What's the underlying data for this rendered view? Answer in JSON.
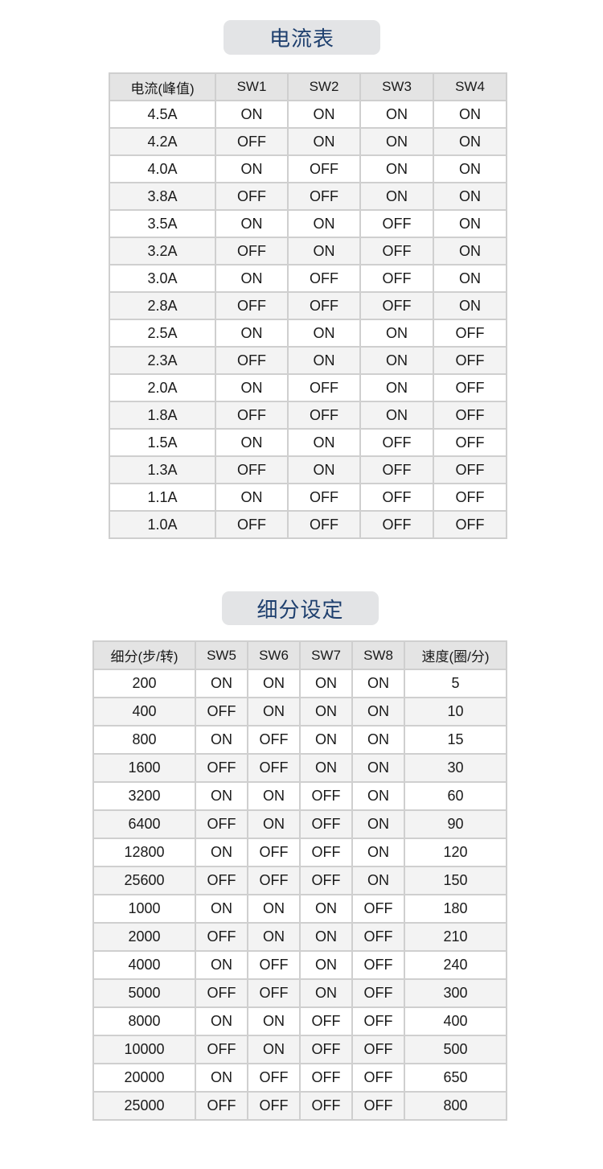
{
  "current_table": {
    "title": "电流表",
    "headers": [
      "电流(峰值)",
      "SW1",
      "SW2",
      "SW3",
      "SW4"
    ],
    "rows": [
      [
        "4.5A",
        "ON",
        "ON",
        "ON",
        "ON"
      ],
      [
        "4.2A",
        "OFF",
        "ON",
        "ON",
        "ON"
      ],
      [
        "4.0A",
        "ON",
        "OFF",
        "ON",
        "ON"
      ],
      [
        "3.8A",
        "OFF",
        "OFF",
        "ON",
        "ON"
      ],
      [
        "3.5A",
        "ON",
        "ON",
        "OFF",
        "ON"
      ],
      [
        "3.2A",
        "OFF",
        "ON",
        "OFF",
        "ON"
      ],
      [
        "3.0A",
        "ON",
        "OFF",
        "OFF",
        "ON"
      ],
      [
        "2.8A",
        "OFF",
        "OFF",
        "OFF",
        "ON"
      ],
      [
        "2.5A",
        "ON",
        "ON",
        "ON",
        "OFF"
      ],
      [
        "2.3A",
        "OFF",
        "ON",
        "ON",
        "OFF"
      ],
      [
        "2.0A",
        "ON",
        "OFF",
        "ON",
        "OFF"
      ],
      [
        "1.8A",
        "OFF",
        "OFF",
        "ON",
        "OFF"
      ],
      [
        "1.5A",
        "ON",
        "ON",
        "OFF",
        "OFF"
      ],
      [
        "1.3A",
        "OFF",
        "ON",
        "OFF",
        "OFF"
      ],
      [
        "1.1A",
        "ON",
        "OFF",
        "OFF",
        "OFF"
      ],
      [
        "1.0A",
        "OFF",
        "OFF",
        "OFF",
        "OFF"
      ]
    ]
  },
  "microstep_table": {
    "title": "细分设定",
    "headers": [
      "细分(步/转)",
      "SW5",
      "SW6",
      "SW7",
      "SW8",
      "速度(圈/分)"
    ],
    "rows": [
      [
        "200",
        "ON",
        "ON",
        "ON",
        "ON",
        "5"
      ],
      [
        "400",
        "OFF",
        "ON",
        "ON",
        "ON",
        "10"
      ],
      [
        "800",
        "ON",
        "OFF",
        "ON",
        "ON",
        "15"
      ],
      [
        "1600",
        "OFF",
        "OFF",
        "ON",
        "ON",
        "30"
      ],
      [
        "3200",
        "ON",
        "ON",
        "OFF",
        "ON",
        "60"
      ],
      [
        "6400",
        "OFF",
        "ON",
        "OFF",
        "ON",
        "90"
      ],
      [
        "12800",
        "ON",
        "OFF",
        "OFF",
        "ON",
        "120"
      ],
      [
        "25600",
        "OFF",
        "OFF",
        "OFF",
        "ON",
        "150"
      ],
      [
        "1000",
        "ON",
        "ON",
        "ON",
        "OFF",
        "180"
      ],
      [
        "2000",
        "OFF",
        "ON",
        "ON",
        "OFF",
        "210"
      ],
      [
        "4000",
        "ON",
        "OFF",
        "ON",
        "OFF",
        "240"
      ],
      [
        "5000",
        "OFF",
        "OFF",
        "ON",
        "OFF",
        "300"
      ],
      [
        "8000",
        "ON",
        "ON",
        "OFF",
        "OFF",
        "400"
      ],
      [
        "10000",
        "OFF",
        "ON",
        "OFF",
        "OFF",
        "500"
      ],
      [
        "20000",
        "ON",
        "OFF",
        "OFF",
        "OFF",
        "650"
      ],
      [
        "25000",
        "OFF",
        "OFF",
        "OFF",
        "OFF",
        "800"
      ]
    ]
  },
  "colors": {
    "title_text": "#1e3f6e",
    "title_bg": "#e3e4e6",
    "header_bg": "#e4e4e4",
    "alt_row_bg": "#f3f3f3"
  }
}
